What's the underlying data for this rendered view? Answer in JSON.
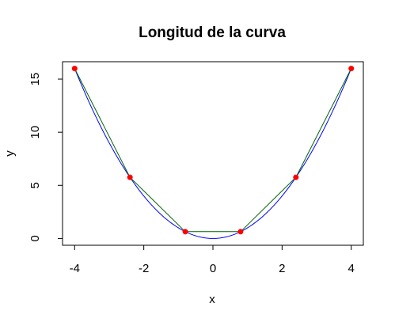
{
  "chart_data": {
    "type": "line",
    "title": "Longitud de la curva",
    "xlabel": "x",
    "ylabel": "y",
    "xlim": [
      -4.35,
      4.35
    ],
    "ylim": [
      -0.64,
      16.64
    ],
    "xticks": [
      -4,
      -2,
      0,
      2,
      4
    ],
    "yticks": [
      0,
      5,
      10,
      15
    ],
    "xtick_labels": [
      "-4",
      "-2",
      "0",
      "2",
      "4"
    ],
    "ytick_labels": [
      "0",
      "5",
      "10",
      "15"
    ],
    "grid": false,
    "legend": "none",
    "curve": {
      "expression": "y = x^2",
      "x_range": [
        -4,
        4
      ],
      "color": "#0000ff"
    },
    "series": [
      {
        "x": [
          -4,
          -2.4,
          -0.8,
          0.8,
          2.4,
          4
        ],
        "y": [
          16,
          5.76,
          0.64,
          0.64,
          5.76,
          16
        ],
        "line_color": "#006400",
        "point_color": "#ff0000"
      }
    ]
  }
}
